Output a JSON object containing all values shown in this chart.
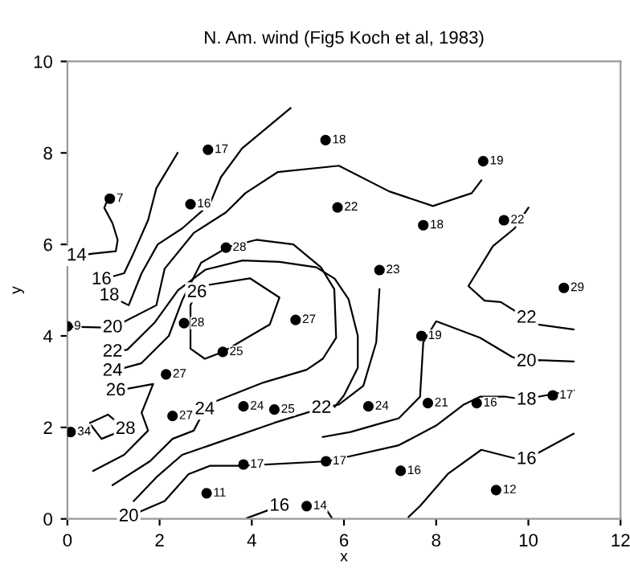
{
  "chart_data": {
    "type": "scatter",
    "title": "N. Am. wind (Fig5 Koch et al, 1983)",
    "xlabel": "x",
    "ylabel": "y",
    "xlim": [
      0,
      12
    ],
    "ylim": [
      0,
      10
    ],
    "xticks": [
      0,
      2,
      4,
      6,
      8,
      10,
      12
    ],
    "yticks": [
      0,
      2,
      4,
      6,
      8,
      10
    ],
    "grid": false,
    "legend": false,
    "series": [
      {
        "color": "#000000",
        "marker": "circle",
        "x": [
          3.05,
          5.6,
          0.92,
          2.67,
          3.44,
          9.02,
          5.86,
          7.72,
          9.47,
          6.77,
          10.77,
          0.0,
          2.53,
          3.37,
          4.95,
          2.14,
          2.28,
          0.07,
          3.82,
          4.49,
          3.82,
          3.02,
          7.68,
          6.53,
          7.82,
          8.88,
          10.53,
          5.61,
          7.23,
          9.3,
          5.19
        ],
        "values": [
          8.07,
          8.28,
          7.0,
          6.88,
          5.93,
          7.82,
          6.81,
          6.42,
          6.53,
          5.44,
          5.05,
          4.21,
          4.28,
          3.65,
          4.35,
          3.16,
          2.25,
          1.9,
          2.46,
          2.39,
          1.19,
          0.56,
          4.0,
          2.46,
          2.53,
          2.53,
          2.7,
          1.26,
          1.05,
          0.63,
          0.28
        ]
      },
      {
        "type": "line",
        "color": "#000000",
        "marker": "none",
        "x": [
          0.2,
          0.55,
          1.05,
          1.09,
          0.98,
          0.8,
          0.88
        ],
        "values": [
          5.75,
          5.8,
          5.85,
          6.1,
          6.46,
          6.8,
          7.0
        ]
      },
      {
        "type": "line",
        "color": "#000000",
        "marker": "none",
        "x": [
          0.74,
          1.23,
          1.44,
          1.75,
          1.93,
          2.39
        ],
        "values": [
          5.23,
          5.37,
          5.82,
          6.53,
          7.23,
          8.0
        ]
      },
      {
        "type": "line",
        "color": "#000000",
        "marker": "none",
        "x": [
          0.91,
          1.33,
          1.61,
          1.96,
          2.49,
          3.09,
          3.33,
          3.79,
          4.84
        ],
        "values": [
          4.88,
          4.67,
          5.37,
          6.0,
          6.35,
          6.88,
          7.47,
          8.1,
          8.98
        ]
      },
      {
        "type": "line",
        "color": "#000000",
        "marker": "none",
        "x": [
          0.1,
          0.98,
          1.93,
          2.11,
          2.74,
          3.44,
          3.86,
          4.56,
          5.89,
          6.98,
          7.93,
          8.77,
          8.98
        ],
        "values": [
          4.2,
          4.18,
          4.67,
          5.47,
          6.25,
          6.7,
          7.12,
          7.58,
          7.72,
          7.16,
          6.84,
          7.12,
          7.4
        ]
      },
      {
        "type": "line",
        "color": "#000000",
        "marker": "none",
        "x": [
          0.98,
          1.3,
          1.9,
          2.4,
          3.0,
          3.8,
          4.6,
          5.4,
          5.8,
          6.1,
          6.3,
          6.3,
          6.0,
          5.8
        ],
        "values": [
          3.65,
          3.7,
          4.3,
          5.0,
          5.45,
          5.65,
          5.62,
          5.5,
          5.25,
          4.8,
          4.0,
          3.3,
          2.7,
          2.45
        ]
      },
      {
        "type": "line",
        "color": "#000000",
        "marker": "none",
        "x": [
          0.98,
          1.6,
          2.2,
          2.5,
          2.9,
          3.5,
          4.1,
          4.9,
          5.5,
          5.79,
          5.83,
          5.54,
          5.19,
          4.25,
          3.19,
          2.98
        ],
        "values": [
          3.23,
          3.4,
          4.0,
          4.8,
          5.6,
          5.95,
          6.1,
          6.0,
          5.5,
          5.02,
          3.96,
          3.5,
          3.26,
          2.98,
          2.56,
          2.39
        ]
      },
      {
        "type": "line",
        "color": "#000000",
        "marker": "none",
        "x": [
          3.09,
          3.96,
          4.6,
          4.39,
          3.37,
          2.98,
          2.67,
          2.67,
          2.81
        ],
        "values": [
          5.12,
          5.26,
          4.84,
          4.25,
          3.65,
          3.5,
          3.72,
          4.67,
          4.95
        ]
      },
      {
        "type": "line",
        "color": "#000000",
        "marker": "none",
        "x": [
          5.51,
          5.89,
          6.42,
          6.7,
          6.77
        ],
        "values": [
          2.42,
          2.5,
          2.91,
          3.86,
          5.02
        ]
      },
      {
        "type": "line",
        "color": "#000000",
        "marker": "none",
        "x": [
          0.49,
          0.88,
          1.26,
          0.74,
          0.52
        ],
        "values": [
          2.1,
          2.28,
          1.96,
          1.75,
          2.04
        ]
      },
      {
        "type": "line",
        "color": "#000000",
        "marker": "none",
        "x": [
          1.05,
          1.86,
          1.61,
          1.75,
          1.23,
          0.56
        ],
        "values": [
          2.8,
          2.95,
          2.32,
          1.93,
          1.4,
          1.05
        ]
      },
      {
        "type": "line",
        "color": "#000000",
        "marker": "none",
        "x": [
          0.98,
          1.79,
          2.28,
          2.74,
          2.98
        ],
        "values": [
          0.74,
          1.26,
          1.75,
          1.93,
          2.39
        ]
      },
      {
        "type": "line",
        "color": "#000000",
        "marker": "none",
        "x": [
          1.44,
          1.93,
          2.49,
          3.09,
          4.49,
          5.51
        ],
        "values": [
          0.39,
          0.91,
          1.4,
          1.61,
          2.1,
          2.42
        ]
      },
      {
        "type": "line",
        "color": "#000000",
        "marker": "none",
        "x": [
          5.54,
          6.14,
          6.84,
          7.19,
          7.65,
          7.72,
          8.0,
          8.95,
          9.65,
          9.96,
          10.21,
          10.98
        ],
        "values": [
          1.79,
          1.9,
          2.1,
          2.2,
          2.67,
          3.86,
          4.32,
          3.96,
          3.54,
          3.44,
          3.47,
          3.44
        ]
      },
      {
        "type": "line",
        "color": "#000000",
        "marker": "none",
        "x": [
          1.33,
          2.11,
          2.63,
          3.09,
          3.79,
          5.65,
          7.19,
          8.0,
          8.6,
          8.95,
          9.51,
          9.96,
          10.21,
          10.98
        ],
        "values": [
          0.05,
          0.39,
          0.98,
          1.16,
          1.16,
          1.26,
          1.61,
          2.04,
          2.5,
          2.67,
          2.67,
          2.6,
          2.67,
          2.81
        ]
      },
      {
        "type": "line",
        "color": "#000000",
        "marker": "none",
        "x": [
          7.4,
          7.65,
          8.25,
          8.98,
          9.68,
          9.96,
          10.21,
          10.98
        ],
        "values": [
          0.04,
          0.28,
          0.98,
          1.51,
          1.33,
          1.3,
          1.44,
          1.86
        ]
      },
      {
        "type": "line",
        "color": "#000000",
        "x": [
          3.9,
          4.6
        ],
        "values": [
          0.02,
          0.28
        ]
      },
      {
        "type": "line",
        "color": "#000000",
        "marker": "none",
        "x": [
          5.62,
          5.75
        ],
        "values": [
          0.2,
          0.0
        ]
      },
      {
        "type": "line",
        "color": "#000000",
        "marker": "none",
        "x": [
          10.0,
          9.7,
          9.23,
          8.7,
          9.05,
          9.4,
          9.96,
          10.21,
          10.98
        ],
        "values": [
          6.8,
          6.35,
          5.96,
          5.09,
          4.77,
          4.74,
          4.39,
          4.25,
          4.14
        ]
      }
    ],
    "annotations": [
      {
        "text": "17",
        "x": 3.05,
        "y": 8.07
      },
      {
        "text": "18",
        "x": 5.6,
        "y": 8.28
      },
      {
        "text": "7",
        "x": 0.92,
        "y": 7.0
      },
      {
        "text": "16",
        "x": 2.67,
        "y": 6.88
      },
      {
        "text": "28",
        "x": 3.44,
        "y": 5.93
      },
      {
        "text": "19",
        "x": 9.02,
        "y": 7.82
      },
      {
        "text": "22",
        "x": 5.86,
        "y": 6.81
      },
      {
        "text": "18",
        "x": 7.72,
        "y": 6.42
      },
      {
        "text": "22",
        "x": 9.47,
        "y": 6.53
      },
      {
        "text": "23",
        "x": 6.77,
        "y": 5.44
      },
      {
        "text": "29",
        "x": 10.77,
        "y": 5.05
      },
      {
        "text": "9",
        "x": 0.0,
        "y": 4.21
      },
      {
        "text": "28",
        "x": 2.53,
        "y": 4.28
      },
      {
        "text": "25",
        "x": 3.37,
        "y": 3.65
      },
      {
        "text": "27",
        "x": 4.95,
        "y": 4.35
      },
      {
        "text": "27",
        "x": 2.14,
        "y": 3.16
      },
      {
        "text": "27",
        "x": 2.28,
        "y": 2.25
      },
      {
        "text": "34",
        "x": 0.07,
        "y": 1.9
      },
      {
        "text": "24",
        "x": 3.82,
        "y": 2.46
      },
      {
        "text": "25",
        "x": 4.49,
        "y": 2.39
      },
      {
        "text": "17",
        "x": 3.82,
        "y": 1.19
      },
      {
        "text": "11",
        "x": 3.02,
        "y": 0.56
      },
      {
        "text": "19",
        "x": 7.68,
        "y": 4.0
      },
      {
        "text": "24",
        "x": 6.53,
        "y": 2.46
      },
      {
        "text": "21",
        "x": 7.82,
        "y": 2.53
      },
      {
        "text": "16",
        "x": 8.88,
        "y": 2.53
      },
      {
        "text": "17",
        "x": 10.53,
        "y": 2.7
      },
      {
        "text": "17",
        "x": 5.61,
        "y": 1.26
      },
      {
        "text": "16",
        "x": 7.23,
        "y": 1.05
      },
      {
        "text": "12",
        "x": 9.3,
        "y": 0.63
      },
      {
        "text": "14",
        "x": 5.19,
        "y": 0.28
      },
      {
        "text": "14",
        "x": 0.2,
        "y": 5.75
      },
      {
        "text": "16",
        "x": 0.74,
        "y": 5.23
      },
      {
        "text": "18",
        "x": 0.91,
        "y": 4.88
      },
      {
        "text": "20",
        "x": 0.98,
        "y": 4.18
      },
      {
        "text": "22",
        "x": 0.98,
        "y": 3.65
      },
      {
        "text": "24",
        "x": 0.98,
        "y": 3.23
      },
      {
        "text": "26",
        "x": 1.05,
        "y": 2.8
      },
      {
        "text": "28",
        "x": 1.26,
        "y": 1.96
      },
      {
        "text": "26",
        "x": 2.81,
        "y": 4.95
      },
      {
        "text": "24",
        "x": 2.98,
        "y": 2.39
      },
      {
        "text": "22",
        "x": 5.51,
        "y": 2.42
      },
      {
        "text": "22",
        "x": 9.96,
        "y": 4.39
      },
      {
        "text": "20",
        "x": 9.96,
        "y": 3.44
      },
      {
        "text": "18",
        "x": 9.96,
        "y": 2.6
      },
      {
        "text": "16",
        "x": 9.96,
        "y": 1.3
      },
      {
        "text": "16",
        "x": 4.6,
        "y": 0.28
      },
      {
        "text": "20",
        "x": 1.33,
        "y": 0.05
      }
    ]
  }
}
